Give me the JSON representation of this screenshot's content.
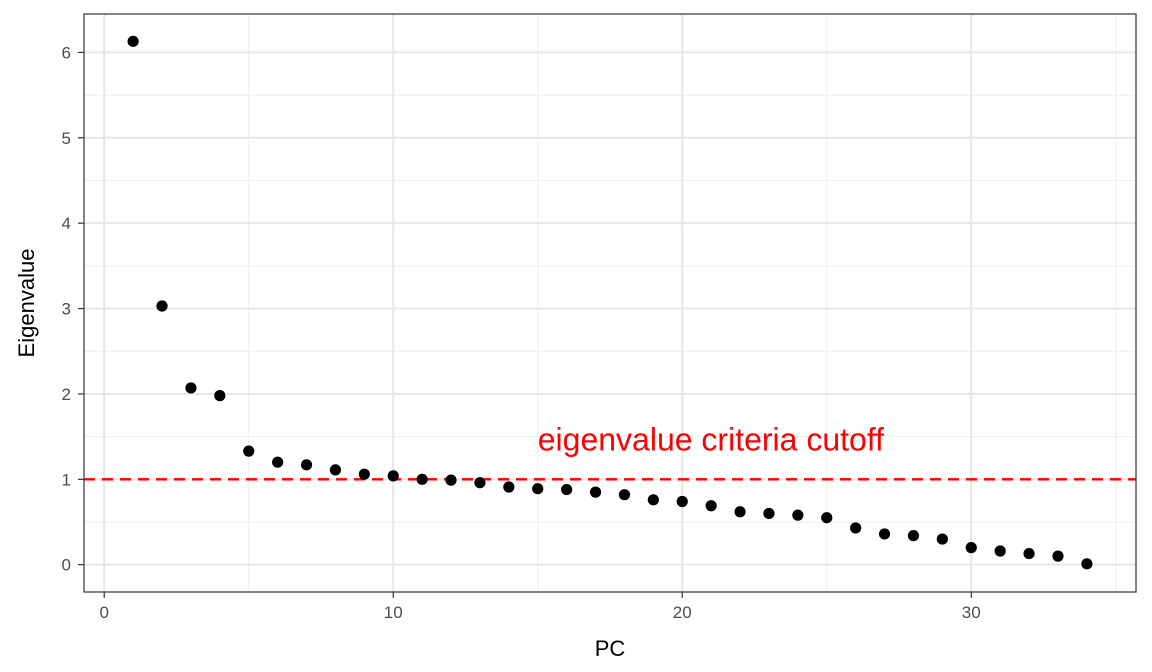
{
  "chart_data": {
    "type": "scatter",
    "title": "",
    "xlabel": "PC",
    "ylabel": "Eigenvalue",
    "xlim": [
      -0.7,
      35.7
    ],
    "ylim": [
      -0.32,
      6.45
    ],
    "x_ticks": [
      0,
      10,
      20,
      30
    ],
    "y_ticks": [
      0,
      1,
      2,
      3,
      4,
      5,
      6
    ],
    "grid": true,
    "legend": "none",
    "series": [
      {
        "x": [
          1,
          2,
          3,
          4,
          5,
          6,
          7,
          8,
          9,
          10,
          11,
          12,
          13,
          14,
          15,
          16,
          17,
          18,
          19,
          20,
          21,
          22,
          23,
          24,
          25,
          26,
          27,
          28,
          29,
          30,
          31,
          32,
          33,
          34
        ],
        "y": [
          6.13,
          3.03,
          2.07,
          1.98,
          1.33,
          1.2,
          1.17,
          1.11,
          1.06,
          1.04,
          1.0,
          0.99,
          0.96,
          0.91,
          0.89,
          0.88,
          0.85,
          0.82,
          0.76,
          0.74,
          0.69,
          0.62,
          0.6,
          0.58,
          0.55,
          0.43,
          0.36,
          0.34,
          0.3,
          0.2,
          0.16,
          0.13,
          0.1,
          0.01
        ],
        "color": "#000000"
      }
    ],
    "reference_line": {
      "y": 1,
      "color": "#ff0000",
      "style": "dashed"
    },
    "annotation": {
      "text": "eigenvalue criteria cutoff",
      "x": 15,
      "y": 1.34,
      "color": "#ff0000"
    }
  }
}
